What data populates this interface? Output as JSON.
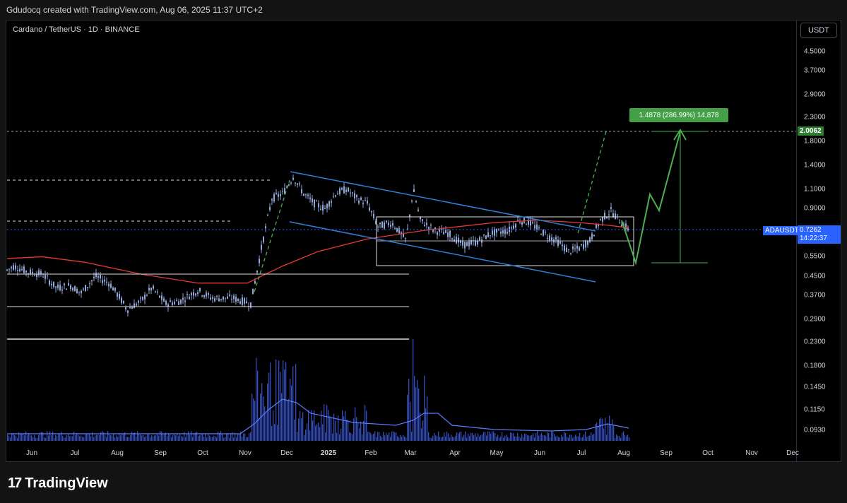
{
  "header": {
    "text": "Gdudocq created with TradingView.com, Aug 06, 2025 11:37 UTC+2"
  },
  "symbol_line": "Cardano / TetherUS · 1D · BINANCE",
  "currency_button": "USDT",
  "measure_label": "1.4878 (286.99%) 14,878",
  "target_price_tag": "2.0062",
  "current_symbol_tag": "ADAUSDT",
  "current_price_tag": "0.7262",
  "countdown_tag": "14:22:37",
  "brand": {
    "logo": "17",
    "name": "TradingView"
  },
  "colors": {
    "background": "#000000",
    "candles": "#90a8d8",
    "moving_average": "#e53935",
    "channel": "#2f7fd8",
    "projection": "#4caf50",
    "volume": "#3d5bd9"
  },
  "chart_data": {
    "type": "line",
    "title": "Cardano / TetherUS · 1D · BINANCE",
    "x_tick_labels": [
      "Jun",
      "Jul",
      "Aug",
      "Sep",
      "Oct",
      "Nov",
      "Dec",
      "2025",
      "Feb",
      "Mar",
      "Apr",
      "May",
      "Jun",
      "Jul",
      "Aug",
      "Sep",
      "Oct",
      "Nov",
      "Dec"
    ],
    "y_tick_labels": [
      "4.5000",
      "3.7000",
      "2.9000",
      "2.3000",
      "1.8000",
      "1.4000",
      "1.1000",
      "0.9000",
      "0.7262",
      "0.5500",
      "0.4500",
      "0.3700",
      "0.2900",
      "0.2300",
      "0.1800",
      "0.1450",
      "0.1150",
      "0.0930"
    ],
    "y_scale": "log",
    "ylim": [
      0.08,
      5.5
    ],
    "series": [
      {
        "name": "ADAUSDT",
        "x": [
          "2024-06",
          "2024-07",
          "2024-08",
          "2024-09",
          "2024-10",
          "2024-11",
          "2024-12",
          "2025-01",
          "2025-02",
          "2025-03",
          "2025-04",
          "2025-05",
          "2025-06",
          "2025-07",
          "2025-08"
        ],
        "values": [
          0.45,
          0.41,
          0.34,
          0.35,
          0.35,
          0.59,
          1.1,
          0.95,
          0.75,
          0.68,
          0.62,
          0.74,
          0.58,
          0.78,
          0.7262
        ]
      }
    ],
    "annotations": {
      "current_price": 0.7262,
      "target_price": 2.0062,
      "measure_change": 1.4878,
      "measure_percent": 286.99
    }
  }
}
